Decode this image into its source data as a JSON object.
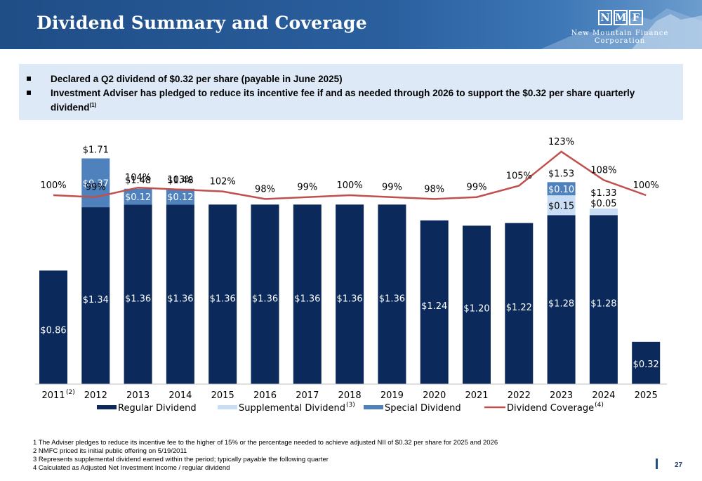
{
  "header": {
    "title": "Dividend Summary and Coverage",
    "logo_letters": [
      "N",
      "M",
      "F"
    ],
    "logo_line1": "New Mountain Finance",
    "logo_line2": "Corporation"
  },
  "bullets": [
    {
      "text": "Declared a Q2 dividend of $0.32 per share (payable in June 2025)",
      "sup": ""
    },
    {
      "text": "Investment Adviser has pledged to reduce its incentive fee if and as needed through 2026 to support the $0.32 per share quarterly dividend",
      "sup": "(1)"
    }
  ],
  "chart_data": {
    "type": "bar",
    "categories": [
      "2011",
      "2012",
      "2013",
      "2014",
      "2015",
      "2016",
      "2017",
      "2018",
      "2019",
      "2020",
      "2021",
      "2022",
      "2023",
      "2024",
      "2025"
    ],
    "category_footnotes": {
      "2011": "(2)"
    },
    "series": [
      {
        "name": "Regular Dividend",
        "color": "#0b2a5b",
        "values": [
          0.86,
          1.34,
          1.36,
          1.36,
          1.36,
          1.36,
          1.36,
          1.36,
          1.36,
          1.24,
          1.2,
          1.22,
          1.28,
          1.28,
          0.32
        ]
      },
      {
        "name": "Supplemental Dividend",
        "footnote": "(3)",
        "color": "#c9def4",
        "values": [
          0,
          0,
          0,
          0,
          0,
          0,
          0,
          0,
          0,
          0,
          0,
          0,
          0.15,
          0.05,
          0
        ]
      },
      {
        "name": "Special Dividend",
        "color": "#4f81bd",
        "values": [
          0,
          0.37,
          0.12,
          0.12,
          0,
          0,
          0,
          0,
          0,
          0,
          0,
          0,
          0.1,
          0,
          0
        ]
      }
    ],
    "totals": [
      null,
      1.71,
      1.48,
      1.48,
      null,
      null,
      null,
      null,
      null,
      null,
      null,
      null,
      1.53,
      1.33,
      null
    ],
    "line_series": {
      "name": "Dividend Coverage",
      "footnote": "(4)",
      "color": "#c0504d",
      "values": [
        100,
        99,
        104,
        103,
        102,
        98,
        99,
        100,
        99,
        98,
        99,
        105,
        123,
        108,
        100
      ]
    },
    "legend_position": "bottom",
    "grid": false
  },
  "footnotes": [
    "1  The Adviser pledges to reduce its incentive fee to the higher of 15% or the percentage needed to achieve adjusted NII of $0.32 per share for 2025 and 2026",
    "2  NMFC priced its initial public offering on 5/19/2011",
    "3  Represents supplemental dividend earned within the period; typically payable the following quarter",
    "4  Calculated as Adjusted Net Investment Income / regular dividend"
  ],
  "page_number": "27"
}
